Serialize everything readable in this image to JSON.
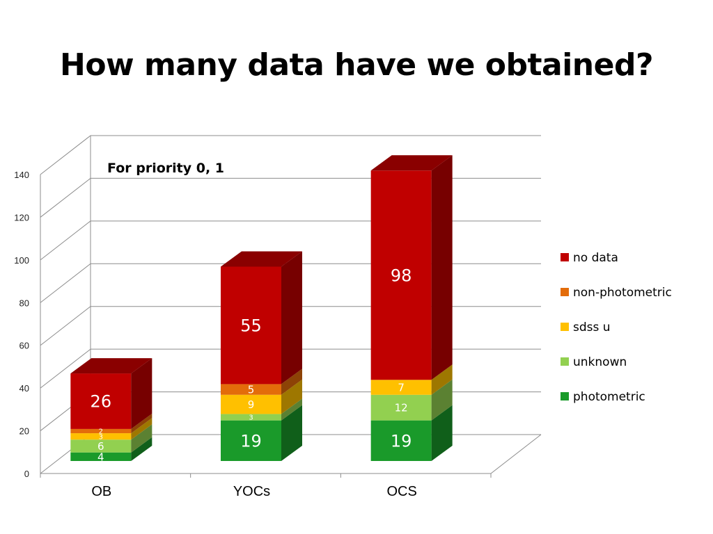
{
  "slide": {
    "title": "How many data have we obtained?"
  },
  "chart_data": {
    "type": "bar",
    "stacked": true,
    "three_d": true,
    "title": "For priority 0, 1",
    "xlabel": "",
    "ylabel": "",
    "categories": [
      "OB",
      "YOCs",
      "OCS"
    ],
    "ylim": [
      0,
      140
    ],
    "yticks": [
      0,
      20,
      40,
      60,
      80,
      100,
      120,
      140
    ],
    "grid": true,
    "legend_position": "right",
    "series": [
      {
        "name": "photometric",
        "color": "#1a9a2a",
        "values": [
          4,
          19,
          19
        ]
      },
      {
        "name": "unknown",
        "color": "#92d050",
        "values": [
          6,
          3,
          12
        ]
      },
      {
        "name": "sdss u",
        "color": "#ffc000",
        "values": [
          3,
          9,
          7
        ]
      },
      {
        "name": "non-photometric",
        "color": "#e36c0a",
        "values": [
          2,
          5,
          0
        ]
      },
      {
        "name": "no data",
        "color": "#c00000",
        "values": [
          26,
          55,
          98
        ]
      }
    ]
  }
}
